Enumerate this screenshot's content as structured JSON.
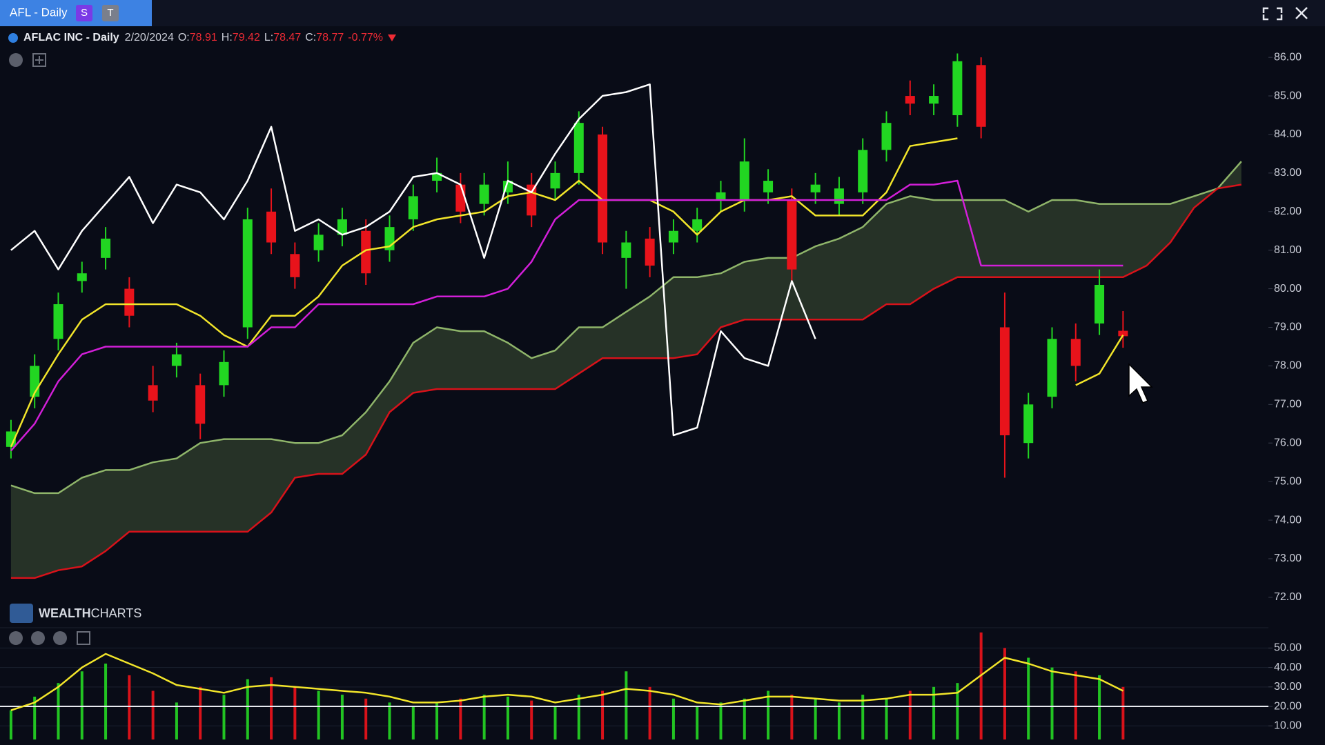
{
  "header": {
    "tab": "AFL - Daily",
    "badges": [
      "S",
      "T"
    ]
  },
  "watermark": [
    "WEALTH",
    "CHARTS"
  ],
  "chart_data": [
    {
      "type": "candlestick",
      "title": "AFLAC INC - Daily",
      "date": "2/20/2024",
      "ohlc_labels": [
        "O:",
        "H:",
        "L:",
        "C:"
      ],
      "change": {
        "value": -0.77,
        "label": "-0.77%"
      },
      "categories": [
        null,
        null,
        null,
        null,
        null,
        null,
        null,
        null,
        null,
        null,
        null,
        null,
        null,
        null,
        null,
        null,
        null,
        null,
        null,
        null,
        null,
        null,
        null,
        null,
        null,
        null,
        null,
        null,
        null,
        null,
        null,
        null,
        null,
        null,
        null,
        null,
        null,
        null,
        null,
        null,
        null,
        null,
        null,
        null,
        null,
        null,
        null,
        null,
        null,
        null,
        null,
        null,
        null
      ],
      "open": [
        75.9,
        77.2,
        78.7,
        80.2,
        80.8,
        80.0,
        77.5,
        78.0,
        77.5,
        77.5,
        79.0,
        82.0,
        80.9,
        81.0,
        81.4,
        81.5,
        81.0,
        81.8,
        82.8,
        82.7,
        82.2,
        82.5,
        82.7,
        82.6,
        83.0,
        84.0,
        80.8,
        81.3,
        81.2,
        81.5,
        82.3,
        82.3,
        82.5,
        82.3,
        82.5,
        82.2,
        82.5,
        83.6,
        85.0,
        84.8,
        84.5,
        85.8,
        79.0,
        76.0,
        77.2,
        78.7,
        79.1,
        78.91,
        null,
        null,
        null,
        null,
        null
      ],
      "high": [
        76.6,
        78.3,
        79.9,
        80.7,
        81.6,
        80.3,
        78.0,
        78.6,
        77.8,
        78.4,
        82.1,
        82.6,
        81.2,
        81.7,
        82.1,
        81.8,
        81.9,
        82.7,
        83.4,
        83.0,
        83.0,
        83.3,
        83.0,
        83.3,
        84.6,
        84.2,
        81.5,
        81.6,
        81.8,
        82.1,
        82.8,
        83.9,
        83.1,
        82.6,
        83.0,
        82.9,
        83.9,
        84.6,
        85.4,
        85.3,
        86.1,
        86.0,
        79.9,
        77.3,
        79.0,
        79.1,
        80.5,
        79.42,
        null,
        null,
        null,
        null,
        null
      ],
      "low": [
        75.6,
        76.9,
        78.4,
        79.9,
        80.5,
        79.0,
        76.8,
        77.7,
        76.1,
        77.2,
        78.7,
        80.9,
        80.0,
        80.7,
        81.1,
        80.1,
        80.7,
        81.5,
        82.5,
        81.7,
        81.9,
        82.2,
        81.6,
        82.3,
        82.7,
        80.9,
        80.0,
        80.3,
        80.9,
        81.2,
        82.0,
        82.0,
        82.2,
        80.2,
        82.2,
        81.9,
        82.2,
        83.3,
        84.5,
        84.5,
        84.2,
        83.9,
        75.1,
        75.6,
        76.9,
        77.6,
        78.8,
        78.47,
        null,
        null,
        null,
        null,
        null
      ],
      "close": [
        76.3,
        78.0,
        79.6,
        80.4,
        81.3,
        79.3,
        77.1,
        78.3,
        76.5,
        78.1,
        81.8,
        81.2,
        80.3,
        81.4,
        81.8,
        80.4,
        81.6,
        82.4,
        83.0,
        82.0,
        82.7,
        82.8,
        81.9,
        83.0,
        84.3,
        81.2,
        81.2,
        80.6,
        81.5,
        81.8,
        82.5,
        83.3,
        82.8,
        80.5,
        82.7,
        82.6,
        83.6,
        84.3,
        84.8,
        85.0,
        85.9,
        84.2,
        76.2,
        77.0,
        78.7,
        78.0,
        80.1,
        78.77,
        null,
        null,
        null,
        null,
        null
      ],
      "up_color": "#22d622",
      "down_color": "#e8131b",
      "series": [
        {
          "color": "#f2e52a",
          "values": [
            75.9,
            77.3,
            78.3,
            79.2,
            79.6,
            79.6,
            79.6,
            79.6,
            79.3,
            78.8,
            78.5,
            79.3,
            79.3,
            79.8,
            80.6,
            81.0,
            81.1,
            81.6,
            81.8,
            81.9,
            82.0,
            82.4,
            82.5,
            82.3,
            82.8,
            82.3,
            82.3,
            82.3,
            82.0,
            81.4,
            82.0,
            82.3,
            82.3,
            82.4,
            81.9,
            81.9,
            81.9,
            82.5,
            83.7,
            83.8,
            83.9,
            null,
            null,
            null,
            null,
            77.5,
            77.8,
            78.8,
            null,
            null,
            null,
            null,
            null
          ]
        },
        {
          "color": "#d21fd8",
          "values": [
            75.8,
            76.5,
            77.6,
            78.3,
            78.5,
            78.5,
            78.5,
            78.5,
            78.5,
            78.5,
            78.5,
            79.0,
            79.0,
            79.6,
            79.6,
            79.6,
            79.6,
            79.6,
            79.8,
            79.8,
            79.8,
            80.0,
            80.7,
            81.8,
            82.3,
            82.3,
            82.3,
            82.3,
            82.3,
            82.3,
            82.3,
            82.3,
            82.3,
            82.3,
            82.3,
            82.3,
            82.3,
            82.3,
            82.7,
            82.7,
            82.8,
            80.6,
            80.6,
            80.6,
            80.6,
            80.6,
            80.6,
            80.6,
            null,
            null,
            null,
            null,
            null
          ]
        },
        {
          "color": "#ffffff",
          "values": [
            81.0,
            81.5,
            80.5,
            81.5,
            82.2,
            82.9,
            81.7,
            82.7,
            82.5,
            81.8,
            82.8,
            84.2,
            81.5,
            81.8,
            81.4,
            81.6,
            82.0,
            82.9,
            83.0,
            82.7,
            80.8,
            82.8,
            82.5,
            83.5,
            84.4,
            85.0,
            85.1,
            85.3,
            76.2,
            76.4,
            78.9,
            78.2,
            78.0,
            80.2,
            78.7,
            null,
            null,
            null,
            null,
            null,
            null,
            null,
            null,
            null,
            null,
            null,
            null,
            null,
            null,
            null,
            null,
            null,
            null
          ]
        },
        {
          "color": "#8fb56a",
          "values": [
            74.9,
            74.7,
            74.7,
            75.1,
            75.3,
            75.3,
            75.5,
            75.6,
            76.0,
            76.1,
            76.1,
            76.1,
            76.0,
            76.0,
            76.2,
            76.8,
            77.6,
            78.6,
            79.0,
            78.9,
            78.9,
            78.6,
            78.2,
            78.4,
            79.0,
            79.0,
            79.4,
            79.8,
            80.3,
            80.3,
            80.4,
            80.7,
            80.8,
            80.8,
            81.1,
            81.3,
            81.6,
            82.2,
            82.4,
            82.3,
            82.3,
            82.3,
            82.3,
            82.0,
            82.3,
            82.3,
            82.2,
            82.2,
            82.2,
            82.2,
            82.4,
            82.6,
            83.3
          ]
        },
        {
          "color": "#d8121a",
          "values": [
            72.5,
            72.5,
            72.7,
            72.8,
            73.2,
            73.7,
            73.7,
            73.7,
            73.7,
            73.7,
            73.7,
            74.2,
            75.1,
            75.2,
            75.2,
            75.7,
            76.8,
            77.3,
            77.4,
            77.4,
            77.4,
            77.4,
            77.4,
            77.4,
            77.8,
            78.2,
            78.2,
            78.2,
            78.2,
            78.3,
            79.0,
            79.2,
            79.2,
            79.2,
            79.2,
            79.2,
            79.2,
            79.6,
            79.6,
            80.0,
            80.3,
            80.3,
            80.3,
            80.3,
            80.3,
            80.3,
            80.3,
            80.3,
            80.6,
            81.2,
            82.1,
            82.6,
            82.7
          ]
        }
      ],
      "cloud_color": "#2c3a2a",
      "ylim": [
        71.3,
        86.7
      ],
      "yticks": [
        {
          "value": 86,
          "label": "86.00"
        },
        {
          "value": 85,
          "label": "85.00"
        },
        {
          "value": 84,
          "label": "84.00"
        },
        {
          "value": 83,
          "label": "83.00"
        },
        {
          "value": 82,
          "label": "82.00"
        },
        {
          "value": 81,
          "label": "81.00"
        },
        {
          "value": 80,
          "label": "80.00"
        },
        {
          "value": 79,
          "label": "79.00"
        },
        {
          "value": 78,
          "label": "78.00"
        },
        {
          "value": 77,
          "label": "77.00"
        },
        {
          "value": 76,
          "label": "76.00"
        },
        {
          "value": 75,
          "label": "75.00"
        },
        {
          "value": 74,
          "label": "74.00"
        },
        {
          "value": 73,
          "label": "73.00"
        },
        {
          "value": 72,
          "label": "72.00"
        }
      ],
      "grid": false
    },
    {
      "type": "bar",
      "categories": [
        null,
        null,
        null,
        null,
        null,
        null,
        null,
        null,
        null,
        null,
        null,
        null,
        null,
        null,
        null,
        null,
        null,
        null,
        null,
        null,
        null,
        null,
        null,
        null,
        null,
        null,
        null,
        null,
        null,
        null,
        null,
        null,
        null,
        null,
        null,
        null,
        null,
        null,
        null,
        null,
        null,
        null,
        null,
        null,
        null,
        null,
        null,
        null,
        null,
        null,
        null,
        null,
        null
      ],
      "values": [
        18,
        25,
        32,
        38,
        42,
        36,
        28,
        22,
        30,
        26,
        34,
        35,
        30,
        28,
        26,
        24,
        22,
        20,
        22,
        24,
        26,
        25,
        23,
        20,
        26,
        28,
        38,
        30,
        24,
        20,
        22,
        24,
        28,
        26,
        24,
        22,
        26,
        24,
        28,
        30,
        32,
        58,
        50,
        45,
        40,
        38,
        36,
        30,
        null,
        null,
        null,
        null,
        null
      ],
      "up_color": "#22c422",
      "down_color": "#d8121a",
      "series": [
        {
          "color": "#f2e52a",
          "values": [
            18,
            22,
            30,
            40,
            47,
            42,
            37,
            31,
            29,
            27,
            30,
            31,
            30,
            29,
            28,
            27,
            25,
            22,
            22,
            23,
            25,
            26,
            25,
            22,
            24,
            26,
            29,
            28,
            26,
            22,
            21,
            23,
            25,
            25,
            24,
            23,
            23,
            24,
            26,
            26,
            27,
            36,
            45,
            42,
            38,
            36,
            34,
            28,
            null,
            null,
            null,
            null,
            null
          ]
        }
      ],
      "reference_line": 20,
      "ylim": [
        3,
        59
      ],
      "yticks": [
        {
          "value": 50,
          "label": "50.00"
        },
        {
          "value": 40,
          "label": "40.00"
        },
        {
          "value": 30,
          "label": "30.00"
        },
        {
          "value": 20,
          "label": "20.00"
        },
        {
          "value": 10,
          "label": "10.00"
        }
      ],
      "grid": true
    }
  ]
}
